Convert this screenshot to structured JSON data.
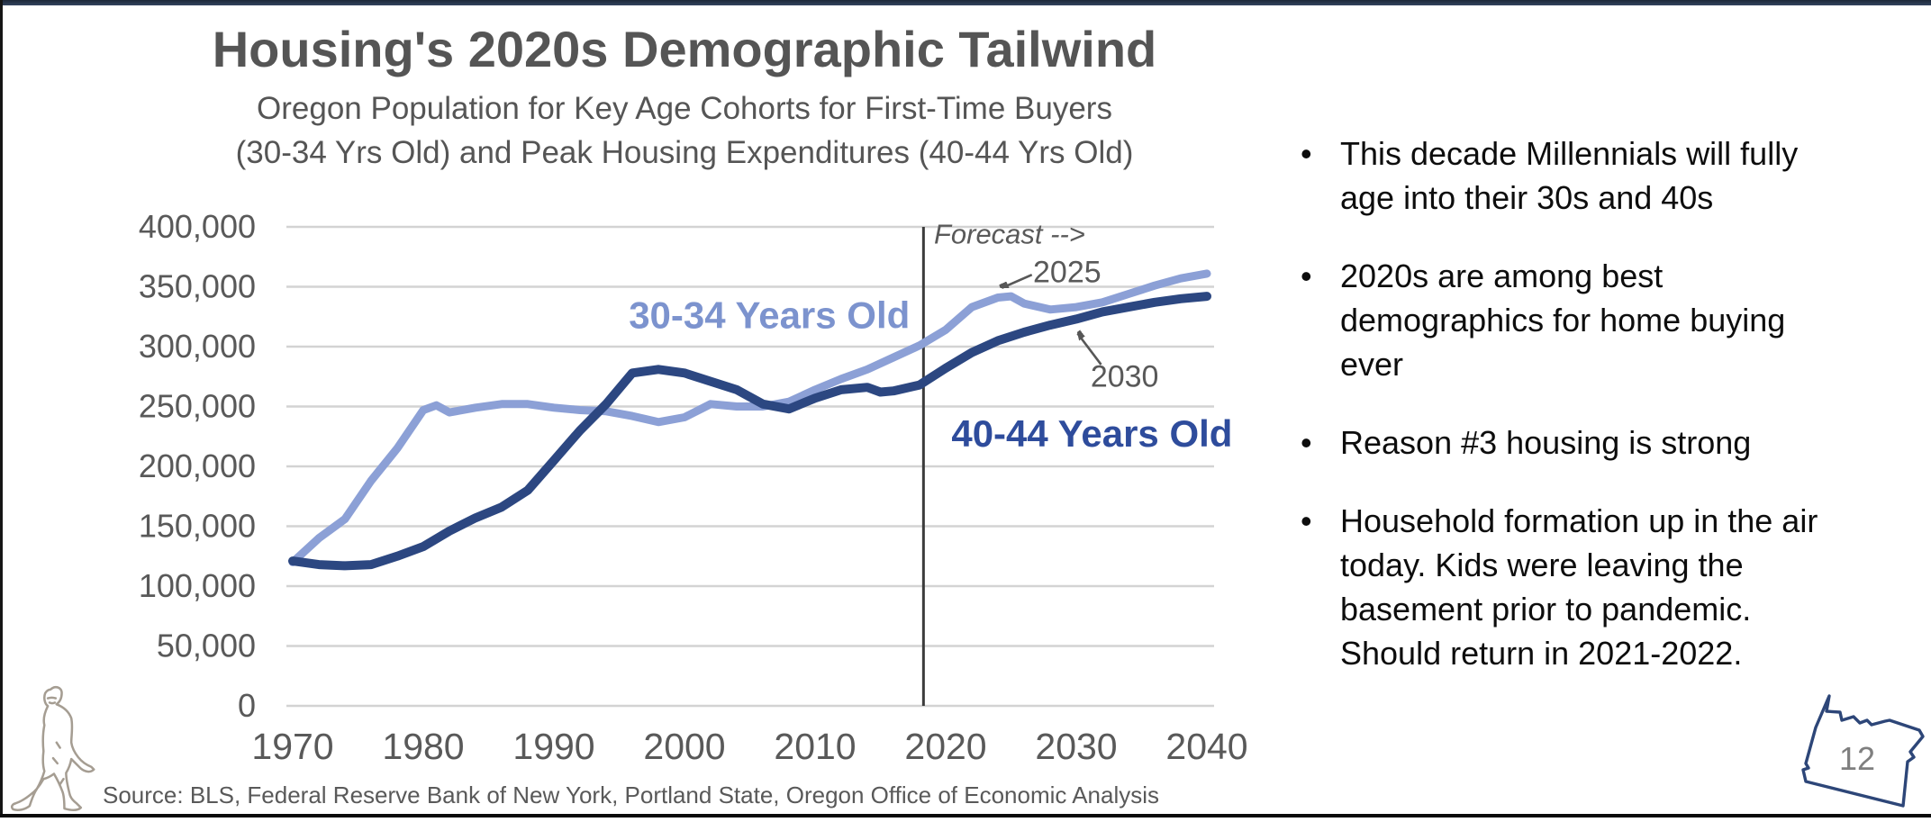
{
  "slide": {
    "title": "Housing's 2020s Demographic Tailwind",
    "subtitle_line1": "Oregon Population for Key Age Cohorts for First-Time Buyers",
    "subtitle_line2": "(30-34 Yrs Old) and Peak Housing Expenditures (40-44 Yrs Old)",
    "source": "Source: BLS, Federal Reserve Bank of New York, Portland State, Oregon Office of Economic Analysis",
    "page_number": "12"
  },
  "bullets": [
    "This decade Millennials will fully age into their 30s and 40s",
    "2020s are among best demographics for home buying ever",
    "Reason #3 housing is strong",
    "Household formation up in the air today. Kids were leaving the basement prior to pandemic. Should return in 2021-2022."
  ],
  "graphics": {
    "bottom_left": "sasquatch-line-drawing",
    "bottom_right": "oregon-state-outline"
  },
  "colors": {
    "series_30_34": "#8CA0D6",
    "series_40_44": "#2C4781",
    "label_30_34": "#7C93CE",
    "label_40_44": "#2E4C9C",
    "gridline": "#d3d3d3",
    "axis_text": "#595959",
    "forecast_line": "#3c3c3c",
    "annotation": "#575757",
    "top_bar": "#2c3a55"
  },
  "chart_data": {
    "type": "line",
    "title": "Housing's 2020s Demographic Tailwind",
    "subtitle": [
      "Oregon Population for Key Age Cohorts for First-Time Buyers",
      "(30-34 Yrs Old) and Peak Housing Expenditures (40-44 Yrs Old)"
    ],
    "xlabel": "",
    "ylabel": "",
    "grid": true,
    "legend_position": "inline-labels",
    "x_range": [
      1970,
      2040
    ],
    "x_ticks": [
      1970,
      1980,
      1990,
      2000,
      2010,
      2020,
      2030,
      2040
    ],
    "y_range": [
      0,
      400000
    ],
    "y_ticks": [
      0,
      50000,
      100000,
      150000,
      200000,
      250000,
      300000,
      350000,
      400000
    ],
    "y_tick_labels": [
      "0",
      "50,000",
      "100,000",
      "150,000",
      "200,000",
      "250,000",
      "300,000",
      "350,000",
      "400,000"
    ],
    "forecast": {
      "divider_year": 2018.3,
      "label": "Forecast -->",
      "label_at": {
        "year": 2019.1,
        "value": 386000
      }
    },
    "series": [
      {
        "name": "30-34 Years Old",
        "color": "#8CA0D6",
        "label_color": "#7C93CE",
        "stroke_width": 9,
        "label_at": {
          "year": 2006.5,
          "value": 326000
        },
        "points": [
          [
            1970,
            120000
          ],
          [
            1972,
            140000
          ],
          [
            1974,
            156000
          ],
          [
            1976,
            188000
          ],
          [
            1978,
            215000
          ],
          [
            1980,
            247000
          ],
          [
            1981,
            251000
          ],
          [
            1982,
            245000
          ],
          [
            1984,
            249000
          ],
          [
            1986,
            252000
          ],
          [
            1988,
            252000
          ],
          [
            1990,
            249000
          ],
          [
            1992,
            247000
          ],
          [
            1994,
            246000
          ],
          [
            1996,
            242000
          ],
          [
            1998,
            237000
          ],
          [
            2000,
            241000
          ],
          [
            2002,
            252000
          ],
          [
            2004,
            250000
          ],
          [
            2006,
            250000
          ],
          [
            2008,
            254000
          ],
          [
            2010,
            264000
          ],
          [
            2012,
            273000
          ],
          [
            2014,
            281000
          ],
          [
            2016,
            291000
          ],
          [
            2018,
            301000
          ],
          [
            2020,
            314000
          ],
          [
            2022,
            333000
          ],
          [
            2024,
            341000
          ],
          [
            2025,
            342000
          ],
          [
            2026,
            336000
          ],
          [
            2028,
            331000
          ],
          [
            2030,
            333000
          ],
          [
            2032,
            337000
          ],
          [
            2034,
            344000
          ],
          [
            2036,
            351000
          ],
          [
            2038,
            357000
          ],
          [
            2040,
            361000
          ]
        ]
      },
      {
        "name": "40-44 Years Old",
        "color": "#2C4781",
        "label_color": "#2E4C9C",
        "stroke_width": 10,
        "label_at": {
          "year": 2031.2,
          "value": 227000
        },
        "points": [
          [
            1970,
            121000
          ],
          [
            1972,
            118000
          ],
          [
            1974,
            117000
          ],
          [
            1976,
            118000
          ],
          [
            1978,
            125000
          ],
          [
            1980,
            133000
          ],
          [
            1982,
            146000
          ],
          [
            1984,
            157000
          ],
          [
            1986,
            166000
          ],
          [
            1988,
            180000
          ],
          [
            1990,
            205000
          ],
          [
            1992,
            230000
          ],
          [
            1994,
            252000
          ],
          [
            1996,
            278000
          ],
          [
            1998,
            281000
          ],
          [
            2000,
            278000
          ],
          [
            2002,
            271000
          ],
          [
            2004,
            264000
          ],
          [
            2006,
            252000
          ],
          [
            2008,
            248000
          ],
          [
            2010,
            257000
          ],
          [
            2012,
            264000
          ],
          [
            2014,
            266000
          ],
          [
            2015,
            262000
          ],
          [
            2016,
            263000
          ],
          [
            2018,
            268000
          ],
          [
            2020,
            282000
          ],
          [
            2022,
            295000
          ],
          [
            2024,
            305000
          ],
          [
            2026,
            312000
          ],
          [
            2028,
            318000
          ],
          [
            2030,
            323000
          ],
          [
            2032,
            329000
          ],
          [
            2034,
            333000
          ],
          [
            2036,
            337000
          ],
          [
            2038,
            340000
          ],
          [
            2040,
            342000
          ]
        ]
      }
    ],
    "annotations": [
      {
        "text": "2025",
        "text_at": {
          "year": 2029.3,
          "value": 362000
        },
        "arrow_from": {
          "year": 2026.6,
          "value": 360000
        },
        "arrow_to": {
          "year": 2024.3,
          "value": 349000
        }
      },
      {
        "text": "2030",
        "text_at": {
          "year": 2033.7,
          "value": 275000
        },
        "arrow_from": {
          "year": 2031.9,
          "value": 285000
        },
        "arrow_to": {
          "year": 2030.1,
          "value": 311000
        }
      }
    ]
  }
}
